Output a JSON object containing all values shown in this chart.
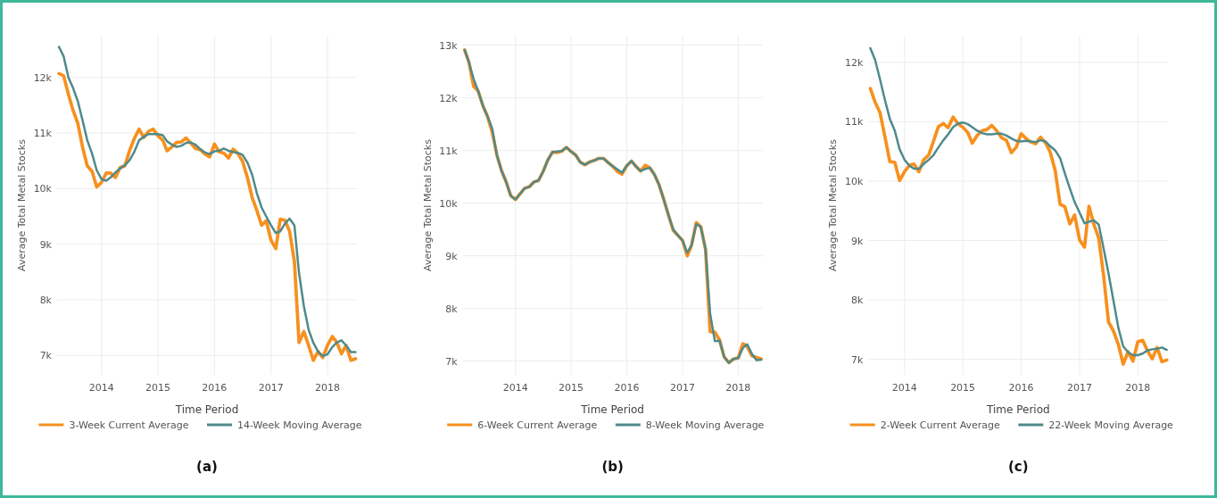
{
  "chart_data": [
    {
      "type": "line",
      "xlabel": "Time Period",
      "ylabel": "Average Total Metal Stocks",
      "annotations": [
        "(a)"
      ],
      "grid": true,
      "legend": "bottom",
      "xlim": [
        "2013-03-20",
        "2018-07-10"
      ],
      "xticks": [
        "2014",
        "2015",
        "2016",
        "2017",
        "2018"
      ],
      "ylim": [
        6650,
        12750
      ],
      "yticks": [
        {
          "value": 7000,
          "label": "7k"
        },
        {
          "value": 8000,
          "label": "8k"
        },
        {
          "value": 9000,
          "label": "9k"
        },
        {
          "value": 10000,
          "label": "10k"
        },
        {
          "value": 11000,
          "label": "11k"
        },
        {
          "value": 12000,
          "label": "12k"
        }
      ],
      "x": [
        "2013-04",
        "2013-05",
        "2013-06",
        "2013-07",
        "2013-08",
        "2013-09",
        "2013-10",
        "2013-11",
        "2013-12",
        "2014-01",
        "2014-02",
        "2014-03",
        "2014-04",
        "2014-05",
        "2014-06",
        "2014-07",
        "2014-08",
        "2014-09",
        "2014-10",
        "2014-11",
        "2014-12",
        "2015-01",
        "2015-02",
        "2015-03",
        "2015-04",
        "2015-05",
        "2015-06",
        "2015-07",
        "2015-08",
        "2015-09",
        "2015-10",
        "2015-11",
        "2015-12",
        "2016-01",
        "2016-02",
        "2016-03",
        "2016-04",
        "2016-05",
        "2016-06",
        "2016-07",
        "2016-08",
        "2016-09",
        "2016-10",
        "2016-11",
        "2016-12",
        "2017-01",
        "2017-02",
        "2017-03",
        "2017-04",
        "2017-05",
        "2017-06",
        "2017-07",
        "2017-08",
        "2017-09",
        "2017-10",
        "2017-11",
        "2017-12",
        "2018-01",
        "2018-02",
        "2018-03",
        "2018-04",
        "2018-05",
        "2018-06",
        "2018-07"
      ],
      "series": [
        {
          "name": "3-Week Current Average",
          "color": "#f7901e",
          "values": [
            12070,
            12030,
            11700,
            11410,
            11170,
            10740,
            10410,
            10310,
            10030,
            10110,
            10280,
            10280,
            10200,
            10380,
            10410,
            10680,
            10900,
            11070,
            10920,
            11030,
            11070,
            10950,
            10870,
            10680,
            10750,
            10830,
            10840,
            10910,
            10820,
            10720,
            10700,
            10620,
            10570,
            10800,
            10660,
            10640,
            10550,
            10710,
            10630,
            10490,
            10200,
            9840,
            9610,
            9340,
            9420,
            9070,
            8920,
            9450,
            9430,
            9230,
            8690,
            7230,
            7430,
            7180,
            6910,
            7070,
            6960,
            7180,
            7340,
            7240,
            7030,
            7180,
            6910,
            6940
          ]
        },
        {
          "name": "14-Week Moving Average",
          "color": "#4f8a8b",
          "values": [
            12550,
            12380,
            12000,
            11810,
            11570,
            11220,
            10870,
            10630,
            10330,
            10170,
            10140,
            10200,
            10290,
            10360,
            10420,
            10510,
            10660,
            10870,
            10930,
            10980,
            10980,
            10980,
            10960,
            10850,
            10790,
            10750,
            10770,
            10820,
            10830,
            10790,
            10710,
            10650,
            10620,
            10670,
            10680,
            10720,
            10680,
            10660,
            10640,
            10610,
            10470,
            10250,
            9920,
            9660,
            9500,
            9340,
            9200,
            9230,
            9370,
            9460,
            9340,
            8480,
            7890,
            7460,
            7230,
            7070,
            6990,
            7020,
            7150,
            7230,
            7270,
            7180,
            7060,
            7060
          ]
        }
      ]
    },
    {
      "type": "line",
      "xlabel": "Time Period",
      "ylabel": "Average Total Metal Stocks",
      "annotations": [
        "(b)"
      ],
      "grid": true,
      "legend": "bottom",
      "xlim": [
        "2013-01-20",
        "2018-06-10"
      ],
      "xticks": [
        "2014",
        "2015",
        "2016",
        "2017",
        "2018"
      ],
      "ylim": [
        6740,
        13180
      ],
      "yticks": [
        {
          "value": 7000,
          "label": "7k"
        },
        {
          "value": 8000,
          "label": "8k"
        },
        {
          "value": 9000,
          "label": "9k"
        },
        {
          "value": 10000,
          "label": "10k"
        },
        {
          "value": 11000,
          "label": "11k"
        },
        {
          "value": 12000,
          "label": "12k"
        },
        {
          "value": 13000,
          "label": "13k"
        }
      ],
      "x": [
        "2013-02",
        "2013-03",
        "2013-04",
        "2013-05",
        "2013-06",
        "2013-07",
        "2013-08",
        "2013-09",
        "2013-10",
        "2013-11",
        "2013-12",
        "2014-01",
        "2014-02",
        "2014-03",
        "2014-04",
        "2014-05",
        "2014-06",
        "2014-07",
        "2014-08",
        "2014-09",
        "2014-10",
        "2014-11",
        "2014-12",
        "2015-01",
        "2015-02",
        "2015-03",
        "2015-04",
        "2015-05",
        "2015-06",
        "2015-07",
        "2015-08",
        "2015-09",
        "2015-10",
        "2015-11",
        "2015-12",
        "2016-01",
        "2016-02",
        "2016-03",
        "2016-04",
        "2016-05",
        "2016-06",
        "2016-07",
        "2016-08",
        "2016-09",
        "2016-10",
        "2016-11",
        "2016-12",
        "2017-01",
        "2017-02",
        "2017-03",
        "2017-04",
        "2017-05",
        "2017-06",
        "2017-07",
        "2017-08",
        "2017-09",
        "2017-10",
        "2017-11",
        "2017-12",
        "2018-01",
        "2018-02",
        "2018-03",
        "2018-04",
        "2018-05",
        "2018-06"
      ],
      "series": [
        {
          "name": "6-Week Current Average",
          "color": "#f7901e",
          "values": [
            12910,
            12680,
            12220,
            12130,
            11850,
            11650,
            11350,
            10910,
            10620,
            10400,
            10140,
            10070,
            10180,
            10280,
            10310,
            10400,
            10430,
            10600,
            10820,
            10970,
            10960,
            10990,
            11060,
            10980,
            10910,
            10780,
            10730,
            10780,
            10810,
            10850,
            10850,
            10770,
            10700,
            10600,
            10550,
            10710,
            10800,
            10700,
            10610,
            10720,
            10670,
            10540,
            10340,
            10060,
            9770,
            9480,
            9390,
            9290,
            9000,
            9200,
            9630,
            9550,
            9120,
            7560,
            7550,
            7400,
            7080,
            6970,
            7040,
            7060,
            7330,
            7280,
            7100,
            7070,
            7040
          ]
        },
        {
          "name": "8-Week Moving Average",
          "color": "#4f8a8b",
          "values": [
            12910,
            12680,
            12360,
            12130,
            11850,
            11650,
            11420,
            10910,
            10620,
            10400,
            10140,
            10070,
            10180,
            10280,
            10310,
            10400,
            10430,
            10600,
            10820,
            10970,
            10980,
            10990,
            11060,
            10980,
            10910,
            10780,
            10730,
            10780,
            10810,
            10850,
            10850,
            10770,
            10700,
            10640,
            10580,
            10710,
            10800,
            10700,
            10610,
            10650,
            10670,
            10540,
            10340,
            10060,
            9770,
            9500,
            9390,
            9290,
            9060,
            9200,
            9600,
            9550,
            9120,
            7900,
            7380,
            7390,
            7080,
            6970,
            7040,
            7060,
            7250,
            7320,
            7140,
            7020,
            7030
          ]
        }
      ]
    },
    {
      "type": "line",
      "xlabel": "Time Period",
      "ylabel": "Average Total Metal Stocks",
      "annotations": [
        "(c)"
      ],
      "grid": true,
      "legend": "bottom",
      "xlim": [
        "2013-05-20",
        "2018-07-10"
      ],
      "xticks": [
        "2014",
        "2015",
        "2016",
        "2017",
        "2018"
      ],
      "ylim": [
        6740,
        12450
      ],
      "yticks": [
        {
          "value": 7000,
          "label": "7k"
        },
        {
          "value": 8000,
          "label": "8k"
        },
        {
          "value": 9000,
          "label": "9k"
        },
        {
          "value": 10000,
          "label": "10k"
        },
        {
          "value": 11000,
          "label": "11k"
        },
        {
          "value": 12000,
          "label": "12k"
        }
      ],
      "x": [
        "2013-06",
        "2013-07",
        "2013-08",
        "2013-09",
        "2013-10",
        "2013-11",
        "2013-12",
        "2014-01",
        "2014-02",
        "2014-03",
        "2014-04",
        "2014-05",
        "2014-06",
        "2014-07",
        "2014-08",
        "2014-09",
        "2014-10",
        "2014-11",
        "2014-12",
        "2015-01",
        "2015-02",
        "2015-03",
        "2015-04",
        "2015-05",
        "2015-06",
        "2015-07",
        "2015-08",
        "2015-09",
        "2015-10",
        "2015-11",
        "2015-12",
        "2016-01",
        "2016-02",
        "2016-03",
        "2016-04",
        "2016-05",
        "2016-06",
        "2016-07",
        "2016-08",
        "2016-09",
        "2016-10",
        "2016-11",
        "2016-12",
        "2017-01",
        "2017-02",
        "2017-03",
        "2017-04",
        "2017-05",
        "2017-06",
        "2017-07",
        "2017-08",
        "2017-09",
        "2017-10",
        "2017-11",
        "2017-12",
        "2018-01",
        "2018-02",
        "2018-03",
        "2018-04",
        "2018-05",
        "2018-06",
        "2018-07"
      ],
      "series": [
        {
          "name": "2-Week Current Average",
          "color": "#f7901e",
          "values": [
            11560,
            11330,
            11150,
            10740,
            10330,
            10320,
            10010,
            10160,
            10270,
            10290,
            10160,
            10360,
            10440,
            10670,
            10920,
            10970,
            10900,
            11080,
            10970,
            10910,
            10820,
            10640,
            10770,
            10850,
            10870,
            10940,
            10850,
            10730,
            10690,
            10480,
            10570,
            10800,
            10720,
            10660,
            10630,
            10740,
            10650,
            10490,
            10180,
            9610,
            9570,
            9280,
            9430,
            9010,
            8890,
            9580,
            9270,
            9040,
            8400,
            7630,
            7480,
            7250,
            6920,
            7130,
            6970,
            7300,
            7320,
            7150,
            7010,
            7200,
            6960,
            6990
          ]
        },
        {
          "name": "22-Week Moving Average",
          "color": "#4f8a8b",
          "values": [
            12240,
            12040,
            11710,
            11360,
            11050,
            10850,
            10540,
            10360,
            10260,
            10210,
            10210,
            10290,
            10360,
            10440,
            10570,
            10690,
            10790,
            10910,
            10970,
            10990,
            10960,
            10910,
            10850,
            10810,
            10790,
            10790,
            10800,
            10800,
            10770,
            10720,
            10680,
            10670,
            10680,
            10670,
            10660,
            10690,
            10670,
            10590,
            10520,
            10390,
            10130,
            9880,
            9650,
            9470,
            9290,
            9320,
            9340,
            9270,
            8860,
            8450,
            7990,
            7530,
            7220,
            7120,
            7070,
            7070,
            7100,
            7150,
            7170,
            7180,
            7200,
            7160
          ]
        }
      ]
    }
  ]
}
